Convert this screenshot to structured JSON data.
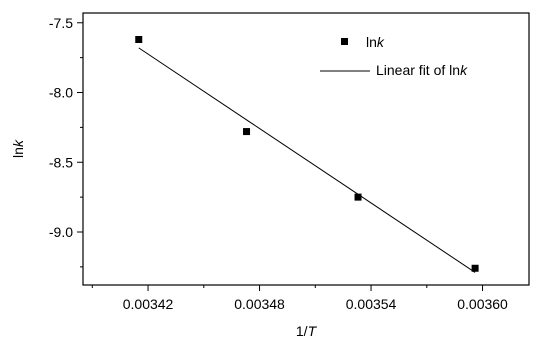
{
  "chart_data": {
    "type": "scatter",
    "xlabel": {
      "base": "1/",
      "italic": "T"
    },
    "ylabel": {
      "base": "ln",
      "italic": "k"
    },
    "xlim": [
      0.003385,
      0.003625
    ],
    "ylim": [
      -9.38,
      -7.43
    ],
    "x_ticks": [
      0.00342,
      0.00348,
      0.00354,
      0.0036
    ],
    "x_tick_labels": [
      "0.00342",
      "0.00348",
      "0.00354",
      "0.00360"
    ],
    "x_minor_ticks": [
      0.00339,
      0.00345,
      0.00351,
      0.00357
    ],
    "y_ticks": [
      -9.0,
      -8.5,
      -8.0,
      -7.5
    ],
    "y_tick_labels": [
      "-9.0",
      "-8.5",
      "-8.0",
      "-7.5"
    ],
    "y_minor_ticks": [
      -9.25,
      -8.75,
      -8.25,
      -7.75
    ],
    "grid": false,
    "legend_position": "top-right",
    "series": [
      {
        "type": "scatter",
        "legend": {
          "base": "ln",
          "italic": "k"
        },
        "color": "#000000",
        "marker": "square",
        "points": [
          {
            "x": 0.003415,
            "y": -7.62
          },
          {
            "x": 0.003473,
            "y": -8.28
          },
          {
            "x": 0.003533,
            "y": -8.75
          },
          {
            "x": 0.003596,
            "y": -9.26
          }
        ]
      },
      {
        "type": "line",
        "legend": {
          "base": "Linear fit of ln",
          "italic": "k"
        },
        "color": "#000000",
        "points": [
          {
            "x": 0.003415,
            "y": -7.68
          },
          {
            "x": 0.003596,
            "y": -9.29
          }
        ]
      }
    ]
  }
}
